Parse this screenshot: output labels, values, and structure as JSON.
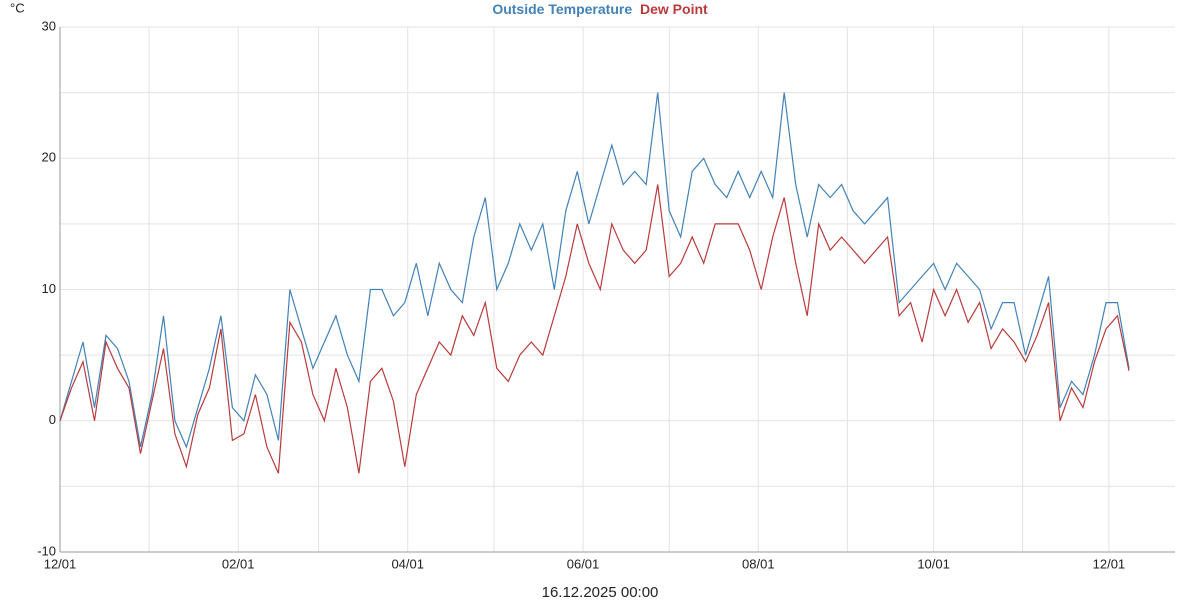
{
  "chart_data": {
    "type": "line",
    "unit": "°C",
    "footer": "16.12.2025 00:00",
    "x": [
      "12/01",
      "12/05",
      "12/09",
      "12/13",
      "12/17",
      "12/21",
      "12/25",
      "12/29",
      "01/02",
      "01/06",
      "01/10",
      "01/14",
      "01/18",
      "01/22",
      "01/26",
      "01/30",
      "02/03",
      "02/07",
      "02/11",
      "02/15",
      "02/19",
      "02/23",
      "02/27",
      "03/03",
      "03/07",
      "03/11",
      "03/15",
      "03/19",
      "03/23",
      "03/27",
      "03/31",
      "04/04",
      "04/08",
      "04/12",
      "04/16",
      "04/20",
      "04/24",
      "04/28",
      "05/02",
      "05/06",
      "05/10",
      "05/14",
      "05/18",
      "05/22",
      "05/26",
      "05/30",
      "06/03",
      "06/07",
      "06/11",
      "06/15",
      "06/19",
      "06/23",
      "06/27",
      "07/01",
      "07/05",
      "07/09",
      "07/13",
      "07/17",
      "07/21",
      "07/25",
      "07/29",
      "08/02",
      "08/06",
      "08/10",
      "08/14",
      "08/18",
      "08/22",
      "08/26",
      "08/30",
      "09/03",
      "09/07",
      "09/11",
      "09/15",
      "09/19",
      "09/23",
      "09/27",
      "10/01",
      "10/05",
      "10/09",
      "10/13",
      "10/17",
      "10/21",
      "10/25",
      "10/29",
      "11/02",
      "11/06",
      "11/10",
      "11/14",
      "11/18",
      "11/22",
      "11/26",
      "11/30",
      "12/04",
      "12/08"
    ],
    "series": [
      {
        "name": "Outside Temperature",
        "color": "#4282b8",
        "values": [
          0,
          3,
          6,
          1,
          6.5,
          5.5,
          3,
          -2,
          2,
          8,
          0,
          -2,
          1,
          4,
          8,
          1,
          0,
          3.5,
          2,
          -1.5,
          10,
          7,
          4,
          6,
          8,
          5,
          3,
          10,
          10,
          8,
          9,
          12,
          8,
          12,
          10,
          9,
          14,
          17,
          10,
          12,
          15,
          13,
          15,
          10,
          16,
          19,
          15,
          18,
          21,
          18,
          19,
          18,
          25,
          16,
          14,
          19,
          20,
          18,
          17,
          19,
          17,
          19,
          17,
          25,
          18,
          14,
          18,
          17,
          18,
          16,
          15,
          16,
          17,
          9,
          10,
          11,
          12,
          10,
          12,
          11,
          10,
          7,
          9,
          9,
          5,
          8,
          11,
          1,
          3,
          2,
          5,
          9,
          9,
          4
        ]
      },
      {
        "name": "Dew Point",
        "color": "#b93b3b",
        "values": [
          0,
          2.5,
          4.5,
          0,
          6,
          4,
          2.5,
          -2.5,
          1.5,
          5.5,
          -1,
          -3.5,
          0.5,
          2.5,
          7,
          -1.5,
          -1,
          2,
          -2,
          -4,
          7.5,
          6,
          2,
          0,
          4,
          1,
          -4,
          3,
          4,
          1.5,
          -3.5,
          2,
          4,
          6,
          5,
          8,
          6.5,
          9,
          4,
          3,
          5,
          6,
          5,
          8,
          11,
          15,
          12,
          10,
          15,
          13,
          12,
          13,
          18,
          11,
          12,
          14,
          12,
          15,
          15,
          15,
          13,
          10,
          14,
          17,
          12,
          8,
          15,
          13,
          14,
          13,
          12,
          13,
          14,
          8,
          9,
          6,
          10,
          8,
          10,
          7.5,
          9,
          5.5,
          7,
          6,
          4.5,
          6.5,
          9,
          0,
          2.5,
          1,
          4.5,
          7,
          8,
          3.8
        ]
      }
    ],
    "xlim": [
      "12/01",
      "12/24"
    ],
    "xticks": [
      "12/01",
      "02/01",
      "04/01",
      "06/01",
      "08/01",
      "10/01",
      "12/01"
    ],
    "xminor": [
      "01/01",
      "03/01",
      "05/01",
      "07/01",
      "09/01",
      "11/01"
    ],
    "ylim": [
      -10,
      30
    ],
    "yticks": [
      -10,
      0,
      10,
      20,
      30
    ],
    "yminor": [
      -5,
      5,
      15,
      25
    ],
    "grid": true
  }
}
